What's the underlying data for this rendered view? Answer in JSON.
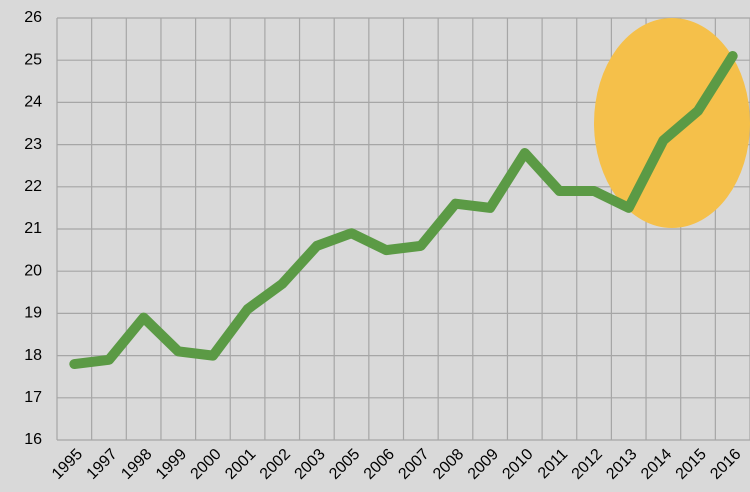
{
  "chart_data": {
    "type": "line",
    "categories": [
      "1995",
      "1997",
      "1998",
      "1999",
      "2000",
      "2001",
      "2002",
      "2003",
      "2005",
      "2006",
      "2007",
      "2008",
      "2009",
      "2010",
      "2011",
      "2012",
      "2013",
      "2014",
      "2015",
      "2016"
    ],
    "values": [
      17.8,
      17.9,
      18.9,
      18.1,
      18.0,
      19.1,
      19.7,
      20.6,
      20.9,
      20.5,
      20.6,
      21.6,
      21.5,
      22.8,
      21.9,
      21.9,
      21.5,
      23.1,
      23.8,
      25.1
    ],
    "color": "#5b9a45",
    "ylim": [
      16,
      26
    ],
    "yticks": [
      16,
      17,
      18,
      19,
      20,
      21,
      22,
      23,
      24,
      25,
      26
    ],
    "grid": true
  }
}
